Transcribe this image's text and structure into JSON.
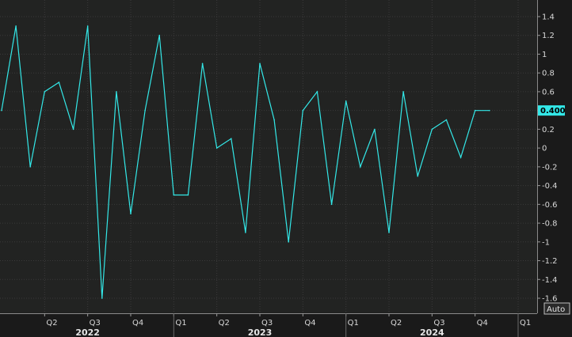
{
  "chart_data": {
    "type": "line",
    "title": "",
    "xlabel": "",
    "ylabel": "",
    "ylim": [
      -1.7,
      1.4
    ],
    "yticks": [
      1.4,
      1.2,
      1,
      0.8,
      0.6,
      0.4,
      0.2,
      0,
      -0.2,
      -0.4,
      -0.6,
      -0.8,
      -1,
      -1.2,
      -1.4,
      -1.6
    ],
    "ytick_labels": [
      "1.4",
      "1.2",
      "1",
      "0.8",
      "0.6",
      "0.4",
      "0.2",
      "0",
      "-0.2",
      "-0.4",
      "-0.6",
      "-0.8",
      "-1",
      "-1.2",
      "-1.4",
      "-1.6"
    ],
    "x_months": [
      "2022-01",
      "2022-02",
      "2022-03",
      "2022-04",
      "2022-05",
      "2022-06",
      "2022-07",
      "2022-08",
      "2022-09",
      "2022-10",
      "2022-11",
      "2022-12",
      "2023-01",
      "2023-02",
      "2023-03",
      "2023-04",
      "2023-05",
      "2023-06",
      "2023-07",
      "2023-08",
      "2023-09",
      "2023-10",
      "2023-11",
      "2023-12",
      "2024-01",
      "2024-02",
      "2024-03",
      "2024-04",
      "2024-05",
      "2024-06",
      "2024-07",
      "2024-08",
      "2024-09",
      "2024-10",
      "2024-11"
    ],
    "series": [
      {
        "values": [
          0.4,
          1.3,
          -0.2,
          0.6,
          0.7,
          0.2,
          1.3,
          -1.6,
          0.6,
          -0.7,
          0.4,
          1.2,
          -0.5,
          -0.5,
          0.9,
          0.0,
          0.1,
          -0.9,
          0.9,
          0.3,
          -1.0,
          0.4,
          0.6,
          -0.6,
          0.5,
          -0.2,
          0.2,
          -0.9,
          0.6,
          -0.3,
          0.2,
          0.3,
          -0.1,
          0.4,
          0.4
        ],
        "color": "#33e8e8"
      }
    ],
    "quarter_ticks": [
      {
        "month": "2022-04",
        "label": "Q2"
      },
      {
        "month": "2022-07",
        "label": "Q3"
      },
      {
        "month": "2022-10",
        "label": "Q4"
      },
      {
        "month": "2023-01",
        "label": "Q1"
      },
      {
        "month": "2023-04",
        "label": "Q2"
      },
      {
        "month": "2023-07",
        "label": "Q3"
      },
      {
        "month": "2023-10",
        "label": "Q4"
      },
      {
        "month": "2024-01",
        "label": "Q1"
      },
      {
        "month": "2024-04",
        "label": "Q2"
      },
      {
        "month": "2024-07",
        "label": "Q3"
      },
      {
        "month": "2024-10",
        "label": "Q4"
      },
      {
        "month": "2025-01",
        "label": "Q1"
      }
    ],
    "year_labels": [
      {
        "month": "2022-07",
        "label": "2022"
      },
      {
        "month": "2023-07",
        "label": "2023"
      },
      {
        "month": "2024-07",
        "label": "2024"
      }
    ],
    "last_value_label": "0.400",
    "grid": true,
    "legend": "none"
  },
  "axis_mode_label": "Auto",
  "colors": {
    "background": "#1a1a1a",
    "plot_background": "#222322",
    "grid": "#3a3a3a",
    "line": "#33e8e8",
    "badge": "#33e8e8",
    "tick_text": "#d8d8d8"
  }
}
